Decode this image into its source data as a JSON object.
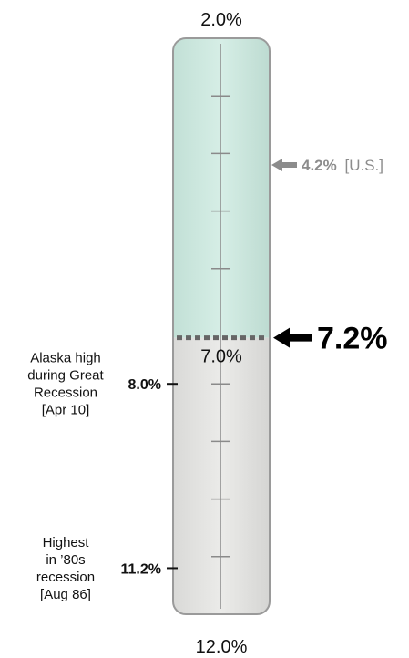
{
  "chart_data": {
    "type": "gauge",
    "scale": {
      "top": 2.0,
      "bottom": 12.0,
      "inverted": true,
      "minor_step": 1.0
    },
    "top_label": "2.0%",
    "bottom_label": "12.0%",
    "mid_label": "7.0%",
    "current": {
      "value": 7.2,
      "label": "7.2%"
    },
    "us": {
      "value": 4.2,
      "value_label": "4.2%",
      "tag": "[U.S.]"
    },
    "annotations": [
      {
        "value": 8.0,
        "value_label": "8.0%",
        "lines": [
          "Alaska high",
          "during Great",
          "Recession",
          "[Apr 10]"
        ]
      },
      {
        "value": 11.2,
        "value_label": "11.2%",
        "lines": [
          "Highest",
          "in ’80s",
          "recession",
          "[Aug 86]"
        ]
      }
    ],
    "colors": {
      "fill_above": "#cfe8e0",
      "fill_below": "#e4e4e2",
      "frame": "#9a9a9a",
      "us_arrow": "#8c8c8c",
      "current_arrow": "#000000"
    }
  }
}
